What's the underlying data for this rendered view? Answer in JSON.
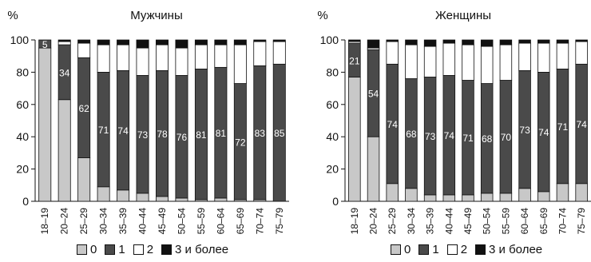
{
  "chart_data": [
    {
      "type": "bar",
      "stacked": true,
      "title": "Мужчины",
      "ylabel": "%",
      "ylim": [
        0,
        100
      ],
      "yticks": [
        0,
        20,
        40,
        60,
        80,
        100
      ],
      "categories": [
        "18–19",
        "20–24",
        "25–29",
        "30–34",
        "35–39",
        "40–44",
        "45–49",
        "50–54",
        "55–59",
        "60–64",
        "65–69",
        "70–74",
        "75–79"
      ],
      "series": [
        {
          "name": "0",
          "color": "#c8c8c8",
          "values": [
            95,
            63,
            27,
            9,
            7,
            5,
            3,
            2,
            1,
            2,
            1,
            1,
            0
          ]
        },
        {
          "name": "1",
          "color": "#4a4a4a",
          "values": [
            5,
            34,
            62,
            71,
            74,
            73,
            78,
            76,
            81,
            81,
            72,
            83,
            85
          ]
        },
        {
          "name": "2",
          "color": "#ffffff",
          "values": [
            0,
            2,
            9,
            17,
            16,
            17,
            16,
            17,
            15,
            14,
            24,
            15,
            14
          ]
        },
        {
          "name": "3 и более",
          "color": "#111111",
          "values": [
            0,
            1,
            2,
            3,
            3,
            5,
            3,
            5,
            3,
            3,
            3,
            1,
            1
          ]
        }
      ],
      "data_labels": [
        "5",
        "34",
        "62",
        "71",
        "74",
        "73",
        "78",
        "76",
        "81",
        "81",
        "72",
        "83",
        "85"
      ]
    },
    {
      "type": "bar",
      "stacked": true,
      "title": "Женщины",
      "ylabel": "%",
      "ylim": [
        0,
        100
      ],
      "yticks": [
        0,
        20,
        40,
        60,
        80,
        100
      ],
      "categories": [
        "18–19",
        "20–24",
        "25–29",
        "30–34",
        "35–39",
        "40–44",
        "45–49",
        "50–54",
        "55–59",
        "60–64",
        "65–69",
        "70–74",
        "75–79"
      ],
      "series": [
        {
          "name": "0",
          "color": "#c8c8c8",
          "values": [
            77,
            40,
            11,
            8,
            4,
            4,
            4,
            5,
            5,
            8,
            6,
            11,
            11
          ]
        },
        {
          "name": "1",
          "color": "#4a4a4a",
          "values": [
            21,
            54,
            74,
            68,
            73,
            74,
            71,
            68,
            70,
            73,
            74,
            71,
            74
          ]
        },
        {
          "name": "2",
          "color": "#ffffff",
          "values": [
            1,
            1,
            14,
            21,
            19,
            20,
            22,
            23,
            22,
            17,
            18,
            16,
            14
          ]
        },
        {
          "name": "3 и более",
          "color": "#111111",
          "values": [
            1,
            5,
            1,
            3,
            4,
            2,
            3,
            4,
            3,
            2,
            2,
            2,
            1
          ]
        }
      ],
      "data_labels": [
        "21",
        "54",
        "74",
        "68",
        "73",
        "74",
        "71",
        "68",
        "70",
        "73",
        "74",
        "71",
        "74"
      ]
    }
  ],
  "legend": [
    {
      "label": "0",
      "color": "#c8c8c8"
    },
    {
      "label": "1",
      "color": "#4a4a4a"
    },
    {
      "label": "2",
      "color": "#ffffff"
    },
    {
      "label": "3 и более",
      "color": "#111111"
    }
  ]
}
